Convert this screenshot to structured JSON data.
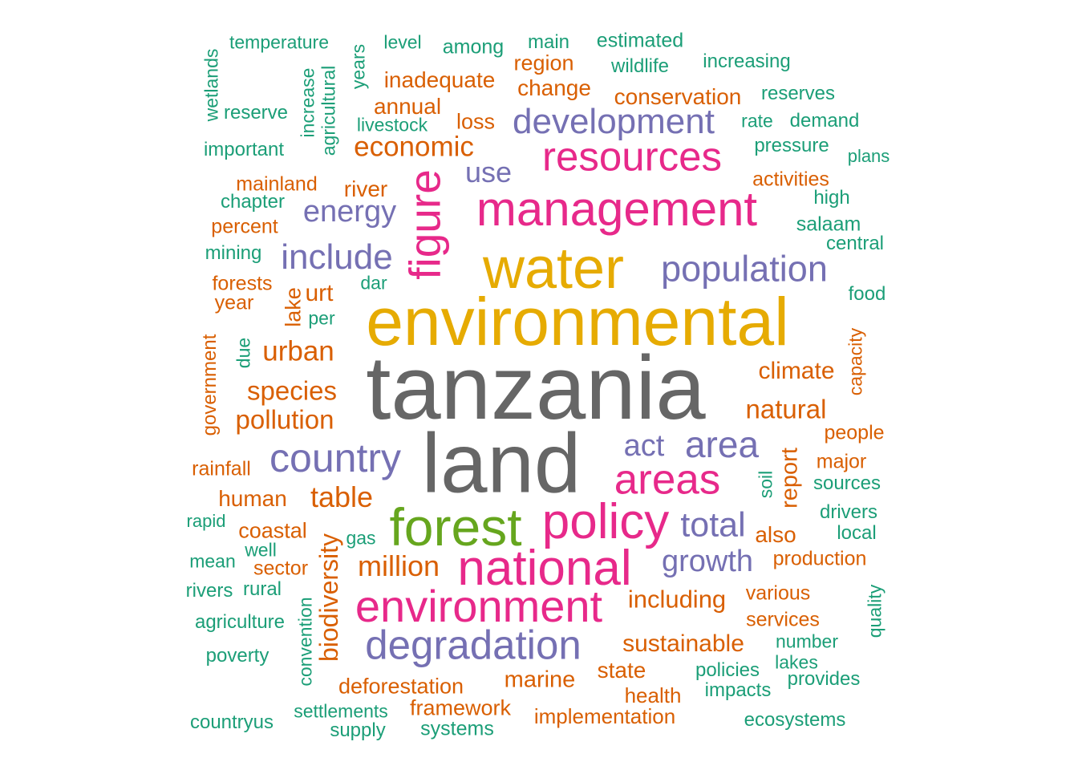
{
  "palette": {
    "gray": "#666666",
    "gold": "#E6AB02",
    "pink": "#E7298A",
    "purple": "#7570B3",
    "green": "#66A61E",
    "orange": "#D95F02",
    "teal": "#1B9E77"
  },
  "words": [
    {
      "text": "tanzania",
      "color": "gray"
    },
    {
      "text": "land",
      "color": "gray"
    },
    {
      "text": "environmental",
      "color": "gold"
    },
    {
      "text": "water",
      "color": "gold"
    },
    {
      "text": "management",
      "color": "pink"
    },
    {
      "text": "resources",
      "color": "pink"
    },
    {
      "text": "forest",
      "color": "green"
    },
    {
      "text": "national",
      "color": "pink"
    },
    {
      "text": "environment",
      "color": "pink"
    },
    {
      "text": "policy",
      "color": "pink"
    },
    {
      "text": "areas",
      "color": "pink"
    },
    {
      "text": "figure",
      "color": "pink"
    },
    {
      "text": "degradation",
      "color": "purple"
    },
    {
      "text": "country",
      "color": "purple"
    },
    {
      "text": "population",
      "color": "purple"
    },
    {
      "text": "development",
      "color": "purple"
    },
    {
      "text": "include",
      "color": "purple"
    },
    {
      "text": "area",
      "color": "purple"
    },
    {
      "text": "total",
      "color": "purple"
    },
    {
      "text": "growth",
      "color": "purple"
    },
    {
      "text": "energy",
      "color": "purple"
    },
    {
      "text": "use",
      "color": "purple"
    },
    {
      "text": "act",
      "color": "purple"
    },
    {
      "text": "economic",
      "color": "orange"
    },
    {
      "text": "urban",
      "color": "orange"
    },
    {
      "text": "species",
      "color": "orange"
    },
    {
      "text": "pollution",
      "color": "orange"
    },
    {
      "text": "table",
      "color": "orange"
    },
    {
      "text": "million",
      "color": "orange"
    },
    {
      "text": "natural",
      "color": "orange"
    },
    {
      "text": "climate",
      "color": "orange"
    },
    {
      "text": "including",
      "color": "orange"
    },
    {
      "text": "sustainable",
      "color": "orange"
    },
    {
      "text": "biodiversity",
      "color": "orange"
    },
    {
      "text": "report",
      "color": "orange"
    },
    {
      "text": "conservation",
      "color": "orange"
    },
    {
      "text": "change",
      "color": "orange"
    },
    {
      "text": "inadequate",
      "color": "orange"
    },
    {
      "text": "annual",
      "color": "orange"
    },
    {
      "text": "region",
      "color": "orange"
    },
    {
      "text": "loss",
      "color": "orange"
    },
    {
      "text": "river",
      "color": "orange"
    },
    {
      "text": "lake",
      "color": "orange"
    },
    {
      "text": "urt",
      "color": "orange"
    },
    {
      "text": "human",
      "color": "orange"
    },
    {
      "text": "coastal",
      "color": "orange"
    },
    {
      "text": "marine",
      "color": "orange"
    },
    {
      "text": "state",
      "color": "orange"
    },
    {
      "text": "deforestation",
      "color": "orange"
    },
    {
      "text": "framework",
      "color": "orange"
    },
    {
      "text": "implementation",
      "color": "orange"
    },
    {
      "text": "health",
      "color": "orange"
    },
    {
      "text": "also",
      "color": "orange"
    },
    {
      "text": "production",
      "color": "orange"
    },
    {
      "text": "various",
      "color": "orange"
    },
    {
      "text": "services",
      "color": "orange"
    },
    {
      "text": "people",
      "color": "orange"
    },
    {
      "text": "major",
      "color": "orange"
    },
    {
      "text": "activities",
      "color": "orange"
    },
    {
      "text": "mainland",
      "color": "orange"
    },
    {
      "text": "percent",
      "color": "orange"
    },
    {
      "text": "forests",
      "color": "orange"
    },
    {
      "text": "year",
      "color": "orange"
    },
    {
      "text": "government",
      "color": "orange"
    },
    {
      "text": "rainfall",
      "color": "orange"
    },
    {
      "text": "sector",
      "color": "orange"
    },
    {
      "text": "capacity",
      "color": "orange"
    },
    {
      "text": "temperature",
      "color": "teal"
    },
    {
      "text": "wetlands",
      "color": "teal"
    },
    {
      "text": "increase",
      "color": "teal"
    },
    {
      "text": "agricultural",
      "color": "teal"
    },
    {
      "text": "years",
      "color": "teal"
    },
    {
      "text": "level",
      "color": "teal"
    },
    {
      "text": "among",
      "color": "teal"
    },
    {
      "text": "main",
      "color": "teal"
    },
    {
      "text": "estimated",
      "color": "teal"
    },
    {
      "text": "wildlife",
      "color": "teal"
    },
    {
      "text": "increasing",
      "color": "teal"
    },
    {
      "text": "reserves",
      "color": "teal"
    },
    {
      "text": "reserve",
      "color": "teal"
    },
    {
      "text": "livestock",
      "color": "teal"
    },
    {
      "text": "rate",
      "color": "teal"
    },
    {
      "text": "demand",
      "color": "teal"
    },
    {
      "text": "important",
      "color": "teal"
    },
    {
      "text": "pressure",
      "color": "teal"
    },
    {
      "text": "plans",
      "color": "teal"
    },
    {
      "text": "chapter",
      "color": "teal"
    },
    {
      "text": "high",
      "color": "teal"
    },
    {
      "text": "salaam",
      "color": "teal"
    },
    {
      "text": "central",
      "color": "teal"
    },
    {
      "text": "mining",
      "color": "teal"
    },
    {
      "text": "dar",
      "color": "teal"
    },
    {
      "text": "food",
      "color": "teal"
    },
    {
      "text": "per",
      "color": "teal"
    },
    {
      "text": "due",
      "color": "teal"
    },
    {
      "text": "soil",
      "color": "teal"
    },
    {
      "text": "sources",
      "color": "teal"
    },
    {
      "text": "drivers",
      "color": "teal"
    },
    {
      "text": "rapid",
      "color": "teal"
    },
    {
      "text": "gas",
      "color": "teal"
    },
    {
      "text": "local",
      "color": "teal"
    },
    {
      "text": "well",
      "color": "teal"
    },
    {
      "text": "mean",
      "color": "teal"
    },
    {
      "text": "rivers",
      "color": "teal"
    },
    {
      "text": "rural",
      "color": "teal"
    },
    {
      "text": "convention",
      "color": "teal"
    },
    {
      "text": "agriculture",
      "color": "teal"
    },
    {
      "text": "quality",
      "color": "teal"
    },
    {
      "text": "number",
      "color": "teal"
    },
    {
      "text": "poverty",
      "color": "teal"
    },
    {
      "text": "lakes",
      "color": "teal"
    },
    {
      "text": "policies",
      "color": "teal"
    },
    {
      "text": "provides",
      "color": "teal"
    },
    {
      "text": "impacts",
      "color": "teal"
    },
    {
      "text": "settlements",
      "color": "teal"
    },
    {
      "text": "countryus",
      "color": "teal"
    },
    {
      "text": "supply",
      "color": "teal"
    },
    {
      "text": "systems",
      "color": "teal"
    },
    {
      "text": "ecosystems",
      "color": "teal"
    }
  ]
}
